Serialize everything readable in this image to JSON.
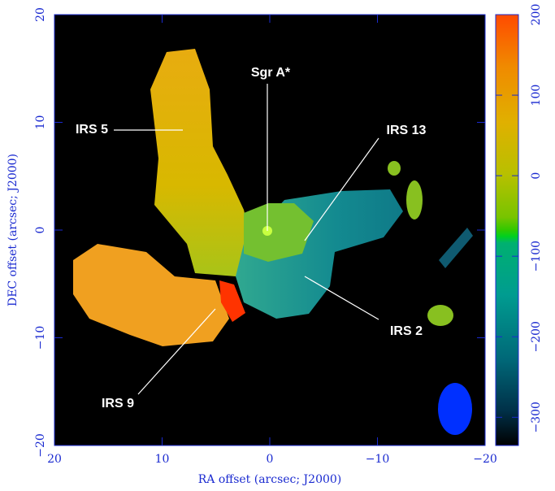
{
  "chart_data": {
    "type": "image",
    "xlabel": "RA offset (arcsec; J2000)",
    "ylabel": "DEC offset (arcsec; J2000)",
    "xlim": [
      20,
      -20
    ],
    "ylim": [
      -20,
      20
    ],
    "xticks": [
      20,
      10,
      0,
      {
        "value": -10,
        "label": "−10"
      },
      {
        "value": -20,
        "label": "−20"
      }
    ],
    "yticks": [
      {
        "value": -20,
        "label": "−20"
      },
      {
        "value": -10,
        "label": "−10"
      },
      0,
      10,
      20
    ],
    "colorbar": {
      "lim": [
        -335,
        200
      ],
      "ticks": [
        {
          "value": -300,
          "label": "−300"
        },
        {
          "value": -200,
          "label": "−200"
        },
        {
          "value": -100,
          "label": "−100"
        },
        0,
        100,
        200
      ]
    },
    "annotations": [
      "Sgr A*",
      "IRS 5",
      "IRS 13",
      "IRS 2",
      "IRS 9"
    ]
  }
}
